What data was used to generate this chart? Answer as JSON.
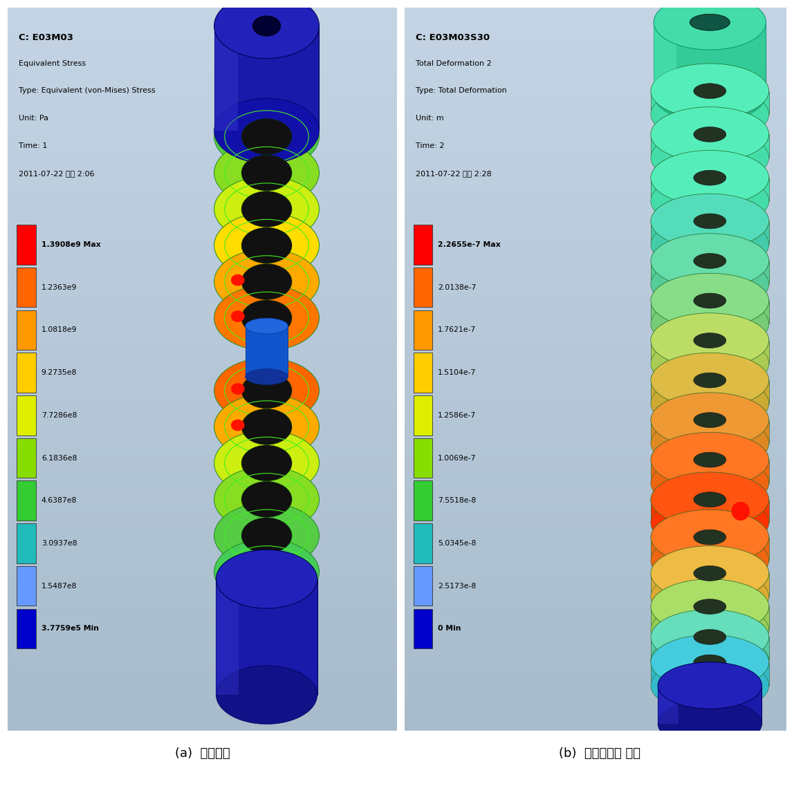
{
  "panel_a": {
    "title_bold": "C: E03M03",
    "lines": [
      "Equivalent Stress",
      "Type: Equivalent (von-Mises) Stress",
      "Unit: Pa",
      "Time: 1",
      "2011-07-22 오후 2:06"
    ],
    "legend_labels": [
      "1.3908e9 Max",
      "1.2363e9",
      "1.0818e9",
      "9.2735e8",
      "7.7286e8",
      "6.1836e8",
      "4.6387e8",
      "3.0937e8",
      "1.5487e8",
      "3.7759e5 Min"
    ],
    "legend_colors": [
      "#ff0000",
      "#ff6600",
      "#ff9900",
      "#ffcc00",
      "#ddee00",
      "#88dd00",
      "#33cc33",
      "#22bbbb",
      "#6699ff",
      "#0000cc"
    ],
    "caption": "(a)  응력분포"
  },
  "panel_b": {
    "title_bold": "C: E03M03S30",
    "lines": [
      "Total Deformation 2",
      "Type: Total Deformation",
      "Unit: m",
      "Time: 2",
      "2011-07-22 오후 2:28"
    ],
    "legend_labels": [
      "2.2655e-7 Max",
      "2.0138e-7",
      "1.7621e-7",
      "1.5104e-7",
      "1.2586e-7",
      "1.0069e-7",
      "7.5518e-8",
      "5.0345e-8",
      "2.5173e-8",
      "0 Min"
    ],
    "legend_colors": [
      "#ff0000",
      "#ff6600",
      "#ff9900",
      "#ffcc00",
      "#ddee00",
      "#88dd00",
      "#33cc33",
      "#22bbbb",
      "#6699ff",
      "#0000cc"
    ],
    "caption": "(b)  소성변형량 분포"
  },
  "figure_bg": "#ffffff",
  "panel_bg_top": "#b8c8dc",
  "panel_bg_bot": "#c8d8e8"
}
